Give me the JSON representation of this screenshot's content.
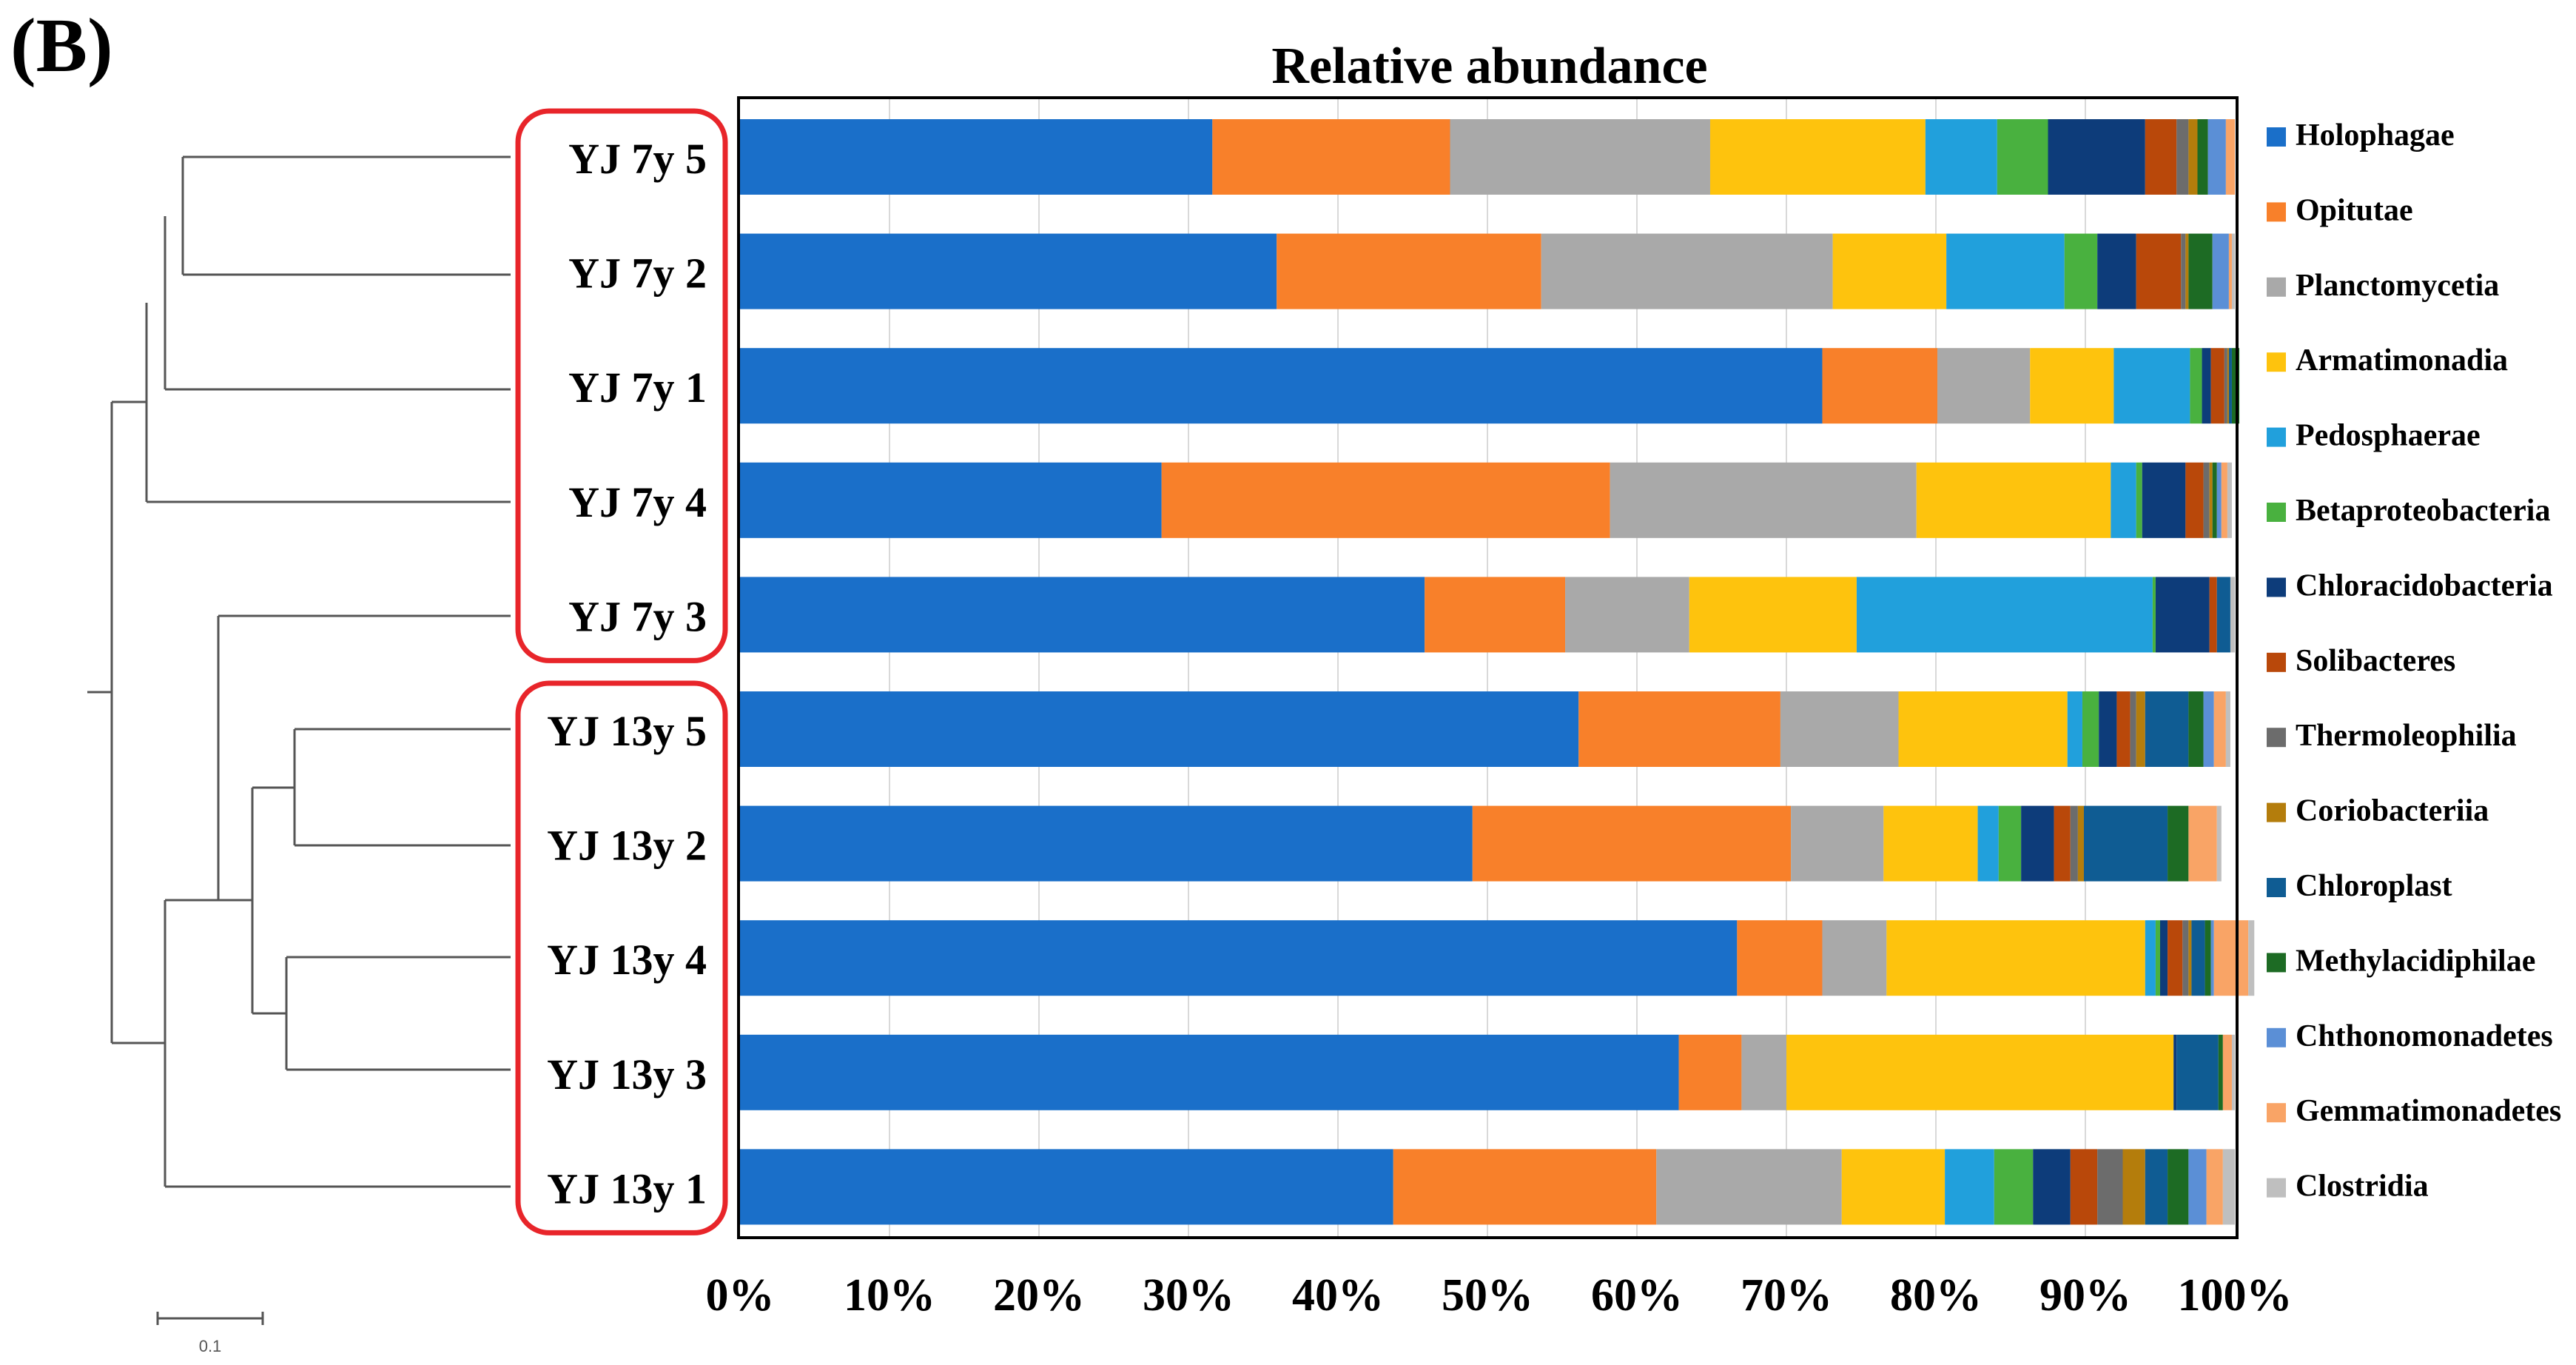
{
  "panel_label": "(B)",
  "scale_bar_label": "0.1",
  "chart_data": {
    "type": "bar",
    "orientation": "horizontal",
    "stacked": true,
    "percent": true,
    "title": "Relative abundance",
    "xlim": [
      0,
      100
    ],
    "x_ticks": [
      "0%",
      "10%",
      "20%",
      "30%",
      "40%",
      "50%",
      "60%",
      "70%",
      "80%",
      "90%",
      "100%"
    ],
    "grid": true,
    "legend_position": "right",
    "categories": [
      "YJ 7y 5",
      "YJ 7y 2",
      "YJ 7y 1",
      "YJ 7y 4",
      "YJ 7y 3",
      "YJ 13y 5",
      "YJ 13y 2",
      "YJ 13y 4",
      "YJ 13y 3",
      "YJ 13y 1"
    ],
    "groups": [
      {
        "members": [
          "YJ 7y 5",
          "YJ 7y 2",
          "YJ 7y 1",
          "YJ 7y 4",
          "YJ 7y 3"
        ],
        "outline_color": "#e8252a"
      },
      {
        "members": [
          "YJ 13y 5",
          "YJ 13y 2",
          "YJ 13y 4",
          "YJ 13y 3",
          "YJ 13y 1"
        ],
        "outline_color": "#e8252a"
      }
    ],
    "series": [
      {
        "name": "Holophagae",
        "color": "#1a6fc9",
        "values": [
          31.6,
          35.9,
          72.4,
          28.2,
          45.8,
          56.1,
          49.0,
          66.7,
          62.8,
          43.7
        ]
      },
      {
        "name": "Opitutae",
        "color": "#f8802a",
        "values": [
          15.9,
          17.7,
          7.7,
          30.0,
          9.4,
          13.5,
          21.3,
          5.7,
          4.2,
          17.6
        ]
      },
      {
        "name": "Planctomycetia",
        "color": "#a9a9a9",
        "values": [
          17.4,
          19.5,
          6.2,
          20.5,
          8.3,
          7.9,
          6.2,
          4.3,
          3.0,
          12.4
        ]
      },
      {
        "name": "Armatimonadia",
        "color": "#fec30d",
        "values": [
          14.4,
          7.6,
          5.6,
          13.0,
          11.2,
          11.3,
          6.3,
          17.3,
          25.9,
          6.9
        ]
      },
      {
        "name": "Pedosphaerae",
        "color": "#21a0dc",
        "values": [
          4.8,
          7.9,
          5.1,
          1.7,
          19.8,
          1.0,
          1.4,
          0.7,
          0.0,
          3.3
        ]
      },
      {
        "name": "Betaproteobacteria",
        "color": "#49b13f",
        "values": [
          3.4,
          2.2,
          0.8,
          0.4,
          0.2,
          1.1,
          1.5,
          0.3,
          0.0,
          2.6
        ]
      },
      {
        "name": "Chloracidobacteria",
        "color": "#0d3c7a",
        "values": [
          6.5,
          2.6,
          0.6,
          2.9,
          3.6,
          1.2,
          2.2,
          0.5,
          0.2,
          2.5
        ]
      },
      {
        "name": "Solibacteres",
        "color": "#b9480a",
        "values": [
          2.1,
          3.0,
          0.9,
          1.2,
          0.5,
          0.9,
          1.1,
          1.0,
          0.0,
          1.8
        ]
      },
      {
        "name": "Thermoleophilia",
        "color": "#6c6c6c",
        "values": [
          0.8,
          0.3,
          0.2,
          0.4,
          0.0,
          0.4,
          0.5,
          0.4,
          0.0,
          1.7
        ]
      },
      {
        "name": "Coriobacteriia",
        "color": "#b47d0c",
        "values": [
          0.6,
          0.2,
          0.1,
          0.2,
          0.0,
          0.6,
          0.4,
          0.2,
          0.0,
          1.5
        ]
      },
      {
        "name": "Chloroplast",
        "color": "#0f5c93",
        "values": [
          0.0,
          0.0,
          0.2,
          0.0,
          0.9,
          2.9,
          5.6,
          0.9,
          2.8,
          1.5
        ]
      },
      {
        "name": "Methylacidiphilae",
        "color": "#1d6b24",
        "values": [
          0.7,
          1.6,
          0.5,
          0.3,
          0.0,
          1.0,
          1.4,
          0.4,
          0.3,
          1.4
        ]
      },
      {
        "name": "Chthonomonadetes",
        "color": "#5b8fd6",
        "values": [
          1.2,
          1.1,
          0.0,
          0.3,
          0.0,
          0.7,
          0.0,
          0.2,
          0.0,
          1.2
        ]
      },
      {
        "name": "Gemmatimonadetes",
        "color": "#f9a466",
        "values": [
          0.6,
          0.2,
          0.0,
          0.4,
          0.0,
          0.8,
          1.9,
          2.3,
          0.6,
          1.1
        ]
      },
      {
        "name": "Clostridia",
        "color": "#bfbfbf",
        "values": [
          0.0,
          0.2,
          0.0,
          0.3,
          0.3,
          0.3,
          0.3,
          0.4,
          0.2,
          0.8
        ]
      }
    ]
  }
}
